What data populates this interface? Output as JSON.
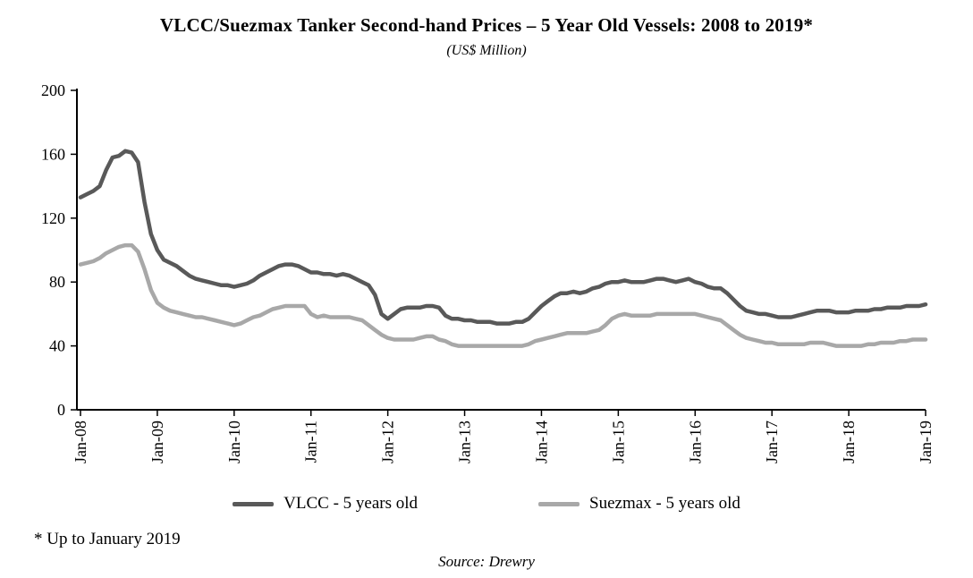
{
  "page": {
    "footnote": "* Up to January 2019",
    "source": "Source: Drewry"
  },
  "chart_data": {
    "type": "line",
    "title": "VLCC/Suezmax Tanker Second-hand Prices – 5 Year Old Vessels: 2008 to 2019*",
    "subtitle": "(US$ Million)",
    "x_frequency": "monthly",
    "x_tick_labels": [
      "Jan-08",
      "Jan-09",
      "Jan-10",
      "Jan-11",
      "Jan-12",
      "Jan-13",
      "Jan-14",
      "Jan-15",
      "Jan-16",
      "Jan-17",
      "Jan-18",
      "Jan-19"
    ],
    "x_tick_interval": 12,
    "ylim": [
      0,
      200
    ],
    "y_ticks": [
      0,
      40,
      80,
      120,
      160,
      200
    ],
    "grid": false,
    "legend_position": "bottom",
    "colors": {
      "vlcc": "#595959",
      "suezmax": "#a8a8a8",
      "axis": "#000000"
    },
    "series": [
      {
        "name": "VLCC - 5 years old",
        "key": "vlcc",
        "values": [
          133,
          135,
          137,
          140,
          150,
          158,
          159,
          162,
          161,
          155,
          130,
          110,
          100,
          94,
          92,
          90,
          87,
          84,
          82,
          81,
          80,
          79,
          78,
          78,
          77,
          78,
          79,
          81,
          84,
          86,
          88,
          90,
          91,
          91,
          90,
          88,
          86,
          86,
          85,
          85,
          84,
          85,
          84,
          82,
          80,
          78,
          72,
          60,
          57,
          60,
          63,
          64,
          64,
          64,
          65,
          65,
          64,
          59,
          57,
          57,
          56,
          56,
          55,
          55,
          55,
          54,
          54,
          54,
          55,
          55,
          57,
          61,
          65,
          68,
          71,
          73,
          73,
          74,
          73,
          74,
          76,
          77,
          79,
          80,
          80,
          81,
          80,
          80,
          80,
          81,
          82,
          82,
          81,
          80,
          81,
          82,
          80,
          79,
          77,
          76,
          76,
          73,
          69,
          65,
          62,
          61,
          60,
          60,
          59,
          58,
          58,
          58,
          59,
          60,
          61,
          62,
          62,
          62,
          61,
          61,
          61,
          62,
          62,
          62,
          63,
          63,
          64,
          64,
          64,
          65,
          65,
          65,
          66
        ]
      },
      {
        "name": "Suezmax - 5 years old",
        "key": "suezmax",
        "values": [
          91,
          92,
          93,
          95,
          98,
          100,
          102,
          103,
          103,
          99,
          88,
          75,
          67,
          64,
          62,
          61,
          60,
          59,
          58,
          58,
          57,
          56,
          55,
          54,
          53,
          54,
          56,
          58,
          59,
          61,
          63,
          64,
          65,
          65,
          65,
          65,
          60,
          58,
          59,
          58,
          58,
          58,
          58,
          57,
          56,
          53,
          50,
          47,
          45,
          44,
          44,
          44,
          44,
          45,
          46,
          46,
          44,
          43,
          41,
          40,
          40,
          40,
          40,
          40,
          40,
          40,
          40,
          40,
          40,
          40,
          41,
          43,
          44,
          45,
          46,
          47,
          48,
          48,
          48,
          48,
          49,
          50,
          53,
          57,
          59,
          60,
          59,
          59,
          59,
          59,
          60,
          60,
          60,
          60,
          60,
          60,
          60,
          59,
          58,
          57,
          56,
          53,
          50,
          47,
          45,
          44,
          43,
          42,
          42,
          41,
          41,
          41,
          41,
          41,
          42,
          42,
          42,
          41,
          40,
          40,
          40,
          40,
          40,
          41,
          41,
          42,
          42,
          42,
          43,
          43,
          44,
          44,
          44
        ]
      }
    ]
  }
}
